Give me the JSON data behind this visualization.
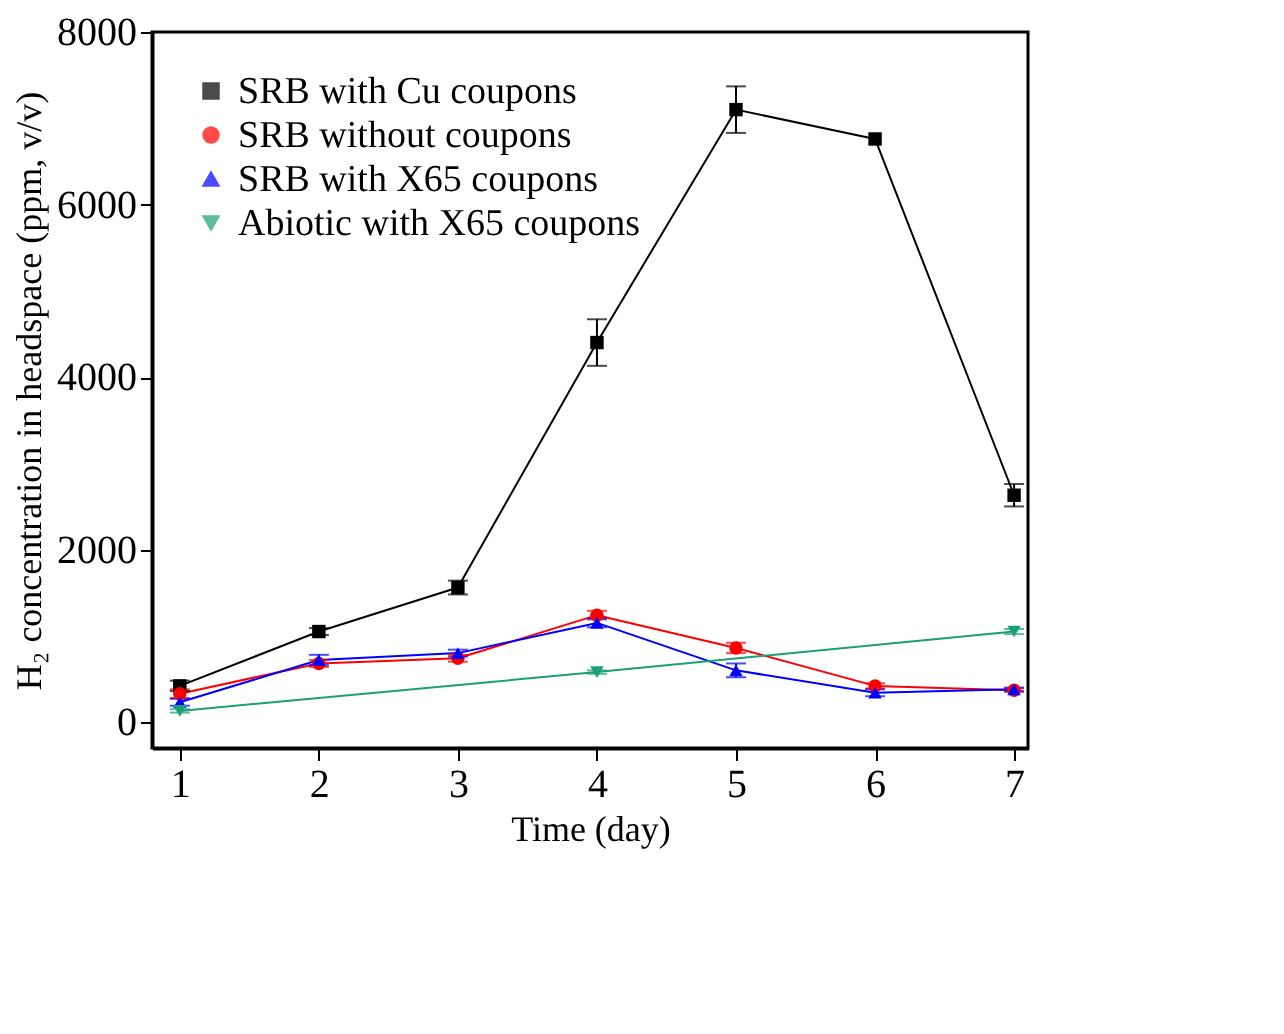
{
  "chart_data": {
    "type": "line",
    "xlabel": "Time (day)",
    "ylabel": "H₂ concentration in headspace (ppm, v/v)",
    "xlim": [
      0.8,
      7.1
    ],
    "xticks": [
      1,
      2,
      3,
      4,
      5,
      6,
      7
    ],
    "ylim": [
      -300,
      8000
    ],
    "yticks": [
      0,
      2000,
      4000,
      6000,
      8000
    ],
    "grid": false,
    "legend": "top left",
    "series": [
      {
        "name": "SRB with Cu coupons",
        "color": "#000000",
        "marker": "square",
        "x": [
          1,
          2,
          3,
          4,
          5,
          6,
          7
        ],
        "values": [
          420,
          1050,
          1560,
          4400,
          7100,
          6760,
          2630
        ],
        "errors": [
          60,
          40,
          80,
          270,
          270,
          null,
          130
        ]
      },
      {
        "name": "SRB without coupons",
        "color": "#ff0000",
        "marker": "circle",
        "x": [
          1,
          2,
          3,
          4,
          5,
          6,
          7
        ],
        "values": [
          330,
          680,
          740,
          1240,
          860,
          420,
          370
        ],
        "errors": [
          50,
          40,
          40,
          50,
          60,
          30,
          20
        ]
      },
      {
        "name": "SRB with X65 coupons",
        "color": "#0000ff",
        "marker": "triangle",
        "x": [
          1,
          2,
          3,
          4,
          5,
          6,
          7
        ],
        "values": [
          230,
          720,
          800,
          1150,
          600,
          340,
          380
        ],
        "errors": [
          40,
          60,
          40,
          50,
          80,
          40,
          20
        ]
      },
      {
        "name": "Abiotic with X65 coupons",
        "color": "#1a9f76",
        "marker": "triangle-down",
        "x": [
          1,
          4,
          7
        ],
        "values": [
          130,
          580,
          1050
        ],
        "errors": [
          20,
          20,
          30
        ]
      }
    ]
  }
}
